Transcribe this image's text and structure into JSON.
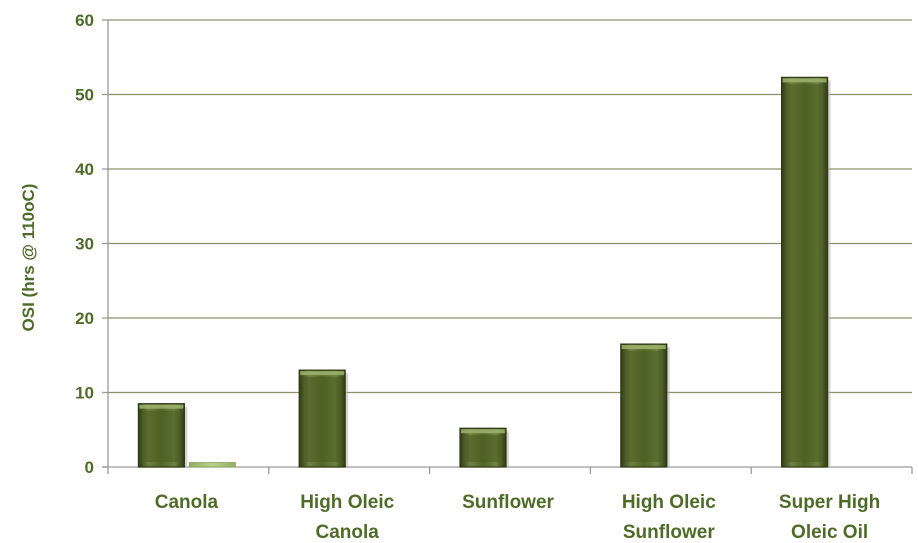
{
  "chart_data": {
    "type": "bar",
    "title": "",
    "xlabel": "",
    "ylabel": "OSI (hrs @ 110oC)",
    "ylim": [
      0,
      60
    ],
    "yticks": [
      0,
      10,
      20,
      30,
      40,
      50,
      60
    ],
    "grid": true,
    "legend": "none",
    "categories": [
      [
        "Canola"
      ],
      [
        "High Oleic",
        "Canola"
      ],
      [
        "Sunflower"
      ],
      [
        "High Oleic",
        "Sunflower"
      ],
      [
        "Super High",
        "Oleic Oil"
      ]
    ],
    "series": [
      {
        "values": [
          8.5,
          13,
          5.2,
          16.5,
          52.3
        ],
        "color": "#4b5d23",
        "edge_color": "#2e3a14"
      },
      {
        "values": [
          0.6,
          0,
          0,
          0,
          0
        ],
        "color": "#a9c27a",
        "edge_color": "#8aa55a"
      }
    ],
    "colors": {
      "text": "#4e6b28",
      "grid": "#8a9168",
      "axis": "#9a9a9a"
    }
  }
}
